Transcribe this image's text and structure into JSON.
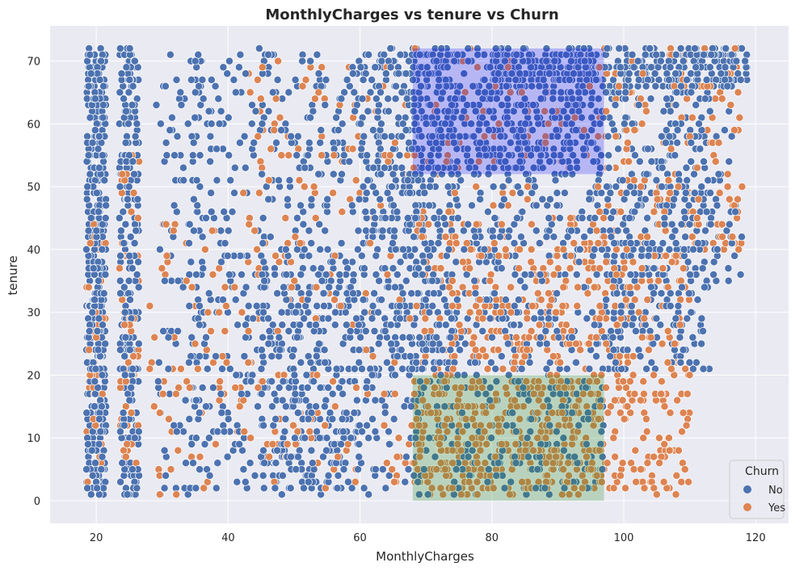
{
  "chart_data": {
    "type": "scatter",
    "title": "MonthlyCharges vs tenure vs Churn",
    "xlabel": "MonthlyCharges",
    "ylabel": "tenure",
    "xlim": [
      13,
      125
    ],
    "ylim": [
      -3.6,
      75.6
    ],
    "xticks": [
      20,
      40,
      60,
      80,
      100,
      120
    ],
    "yticks": [
      0,
      10,
      20,
      30,
      40,
      50,
      60,
      70
    ],
    "grid": true,
    "colors": {
      "background": "#eaeaf2",
      "grid": "#ffffff",
      "No": "#4c72b0",
      "Yes": "#dd8452",
      "highlight_high": "#0000ff",
      "highlight_low": "#228b22"
    },
    "legend": {
      "title": "Churn",
      "position": "bottom-right",
      "entries": [
        "No",
        "Yes"
      ]
    },
    "highlight_regions": [
      {
        "x": [
          68,
          97
        ],
        "y": [
          52,
          72
        ],
        "color": "#0000ff",
        "opacity": 0.22
      },
      {
        "x": [
          68,
          97
        ],
        "y": [
          0,
          20
        ],
        "color": "#228b22",
        "opacity": 0.25
      }
    ],
    "series": [
      {
        "name": "No",
        "color": "#4c72b0",
        "clusters": [
          {
            "x": [
              18.5,
              21.5
            ],
            "y": [
              1,
              72
            ],
            "n": 420
          },
          {
            "x": [
              23.5,
              26.5
            ],
            "y": [
              1,
              72
            ],
            "n": 260
          },
          {
            "x": [
              29,
              36
            ],
            "y": [
              1,
              72
            ],
            "n": 90
          },
          {
            "x": [
              34,
              70
            ],
            "y": [
              1,
              72
            ],
            "n": 700
          },
          {
            "x": [
              45,
              60
            ],
            "y": [
              1,
              40
            ],
            "n": 260
          },
          {
            "x": [
              60,
              75
            ],
            "y": [
              20,
              72
            ],
            "n": 320
          },
          {
            "x": [
              68,
              97
            ],
            "y": [
              52,
              72
            ],
            "n": 520
          },
          {
            "x": [
              68,
              100
            ],
            "y": [
              20,
              52
            ],
            "n": 360
          },
          {
            "x": [
              68,
              97
            ],
            "y": [
              1,
              20
            ],
            "n": 220
          },
          {
            "x": [
              80,
              119
            ],
            "y": [
              66,
              72
            ],
            "n": 330
          },
          {
            "x": [
              97,
              113
            ],
            "y": [
              20,
              66
            ],
            "n": 280
          },
          {
            "x": [
              100,
              118
            ],
            "y": [
              34,
              72
            ],
            "n": 140
          }
        ]
      },
      {
        "name": "Yes",
        "color": "#dd8452",
        "clusters": [
          {
            "x": [
              18.5,
              21.5
            ],
            "y": [
              1,
              45
            ],
            "n": 40
          },
          {
            "x": [
              23.5,
              26.5
            ],
            "y": [
              1,
              56
            ],
            "n": 50
          },
          {
            "x": [
              28,
              42
            ],
            "y": [
              1,
              45
            ],
            "n": 70
          },
          {
            "x": [
              42,
              68
            ],
            "y": [
              1,
              70
            ],
            "n": 180
          },
          {
            "x": [
              68,
              97
            ],
            "y": [
              1,
              20
            ],
            "n": 420
          },
          {
            "x": [
              68,
              97
            ],
            "y": [
              20,
              45
            ],
            "n": 260
          },
          {
            "x": [
              68,
              97
            ],
            "y": [
              45,
              72
            ],
            "n": 90
          },
          {
            "x": [
              97,
              110
            ],
            "y": [
              1,
              40
            ],
            "n": 200
          },
          {
            "x": [
              97,
              118
            ],
            "y": [
              40,
              72
            ],
            "n": 150
          }
        ]
      }
    ]
  }
}
